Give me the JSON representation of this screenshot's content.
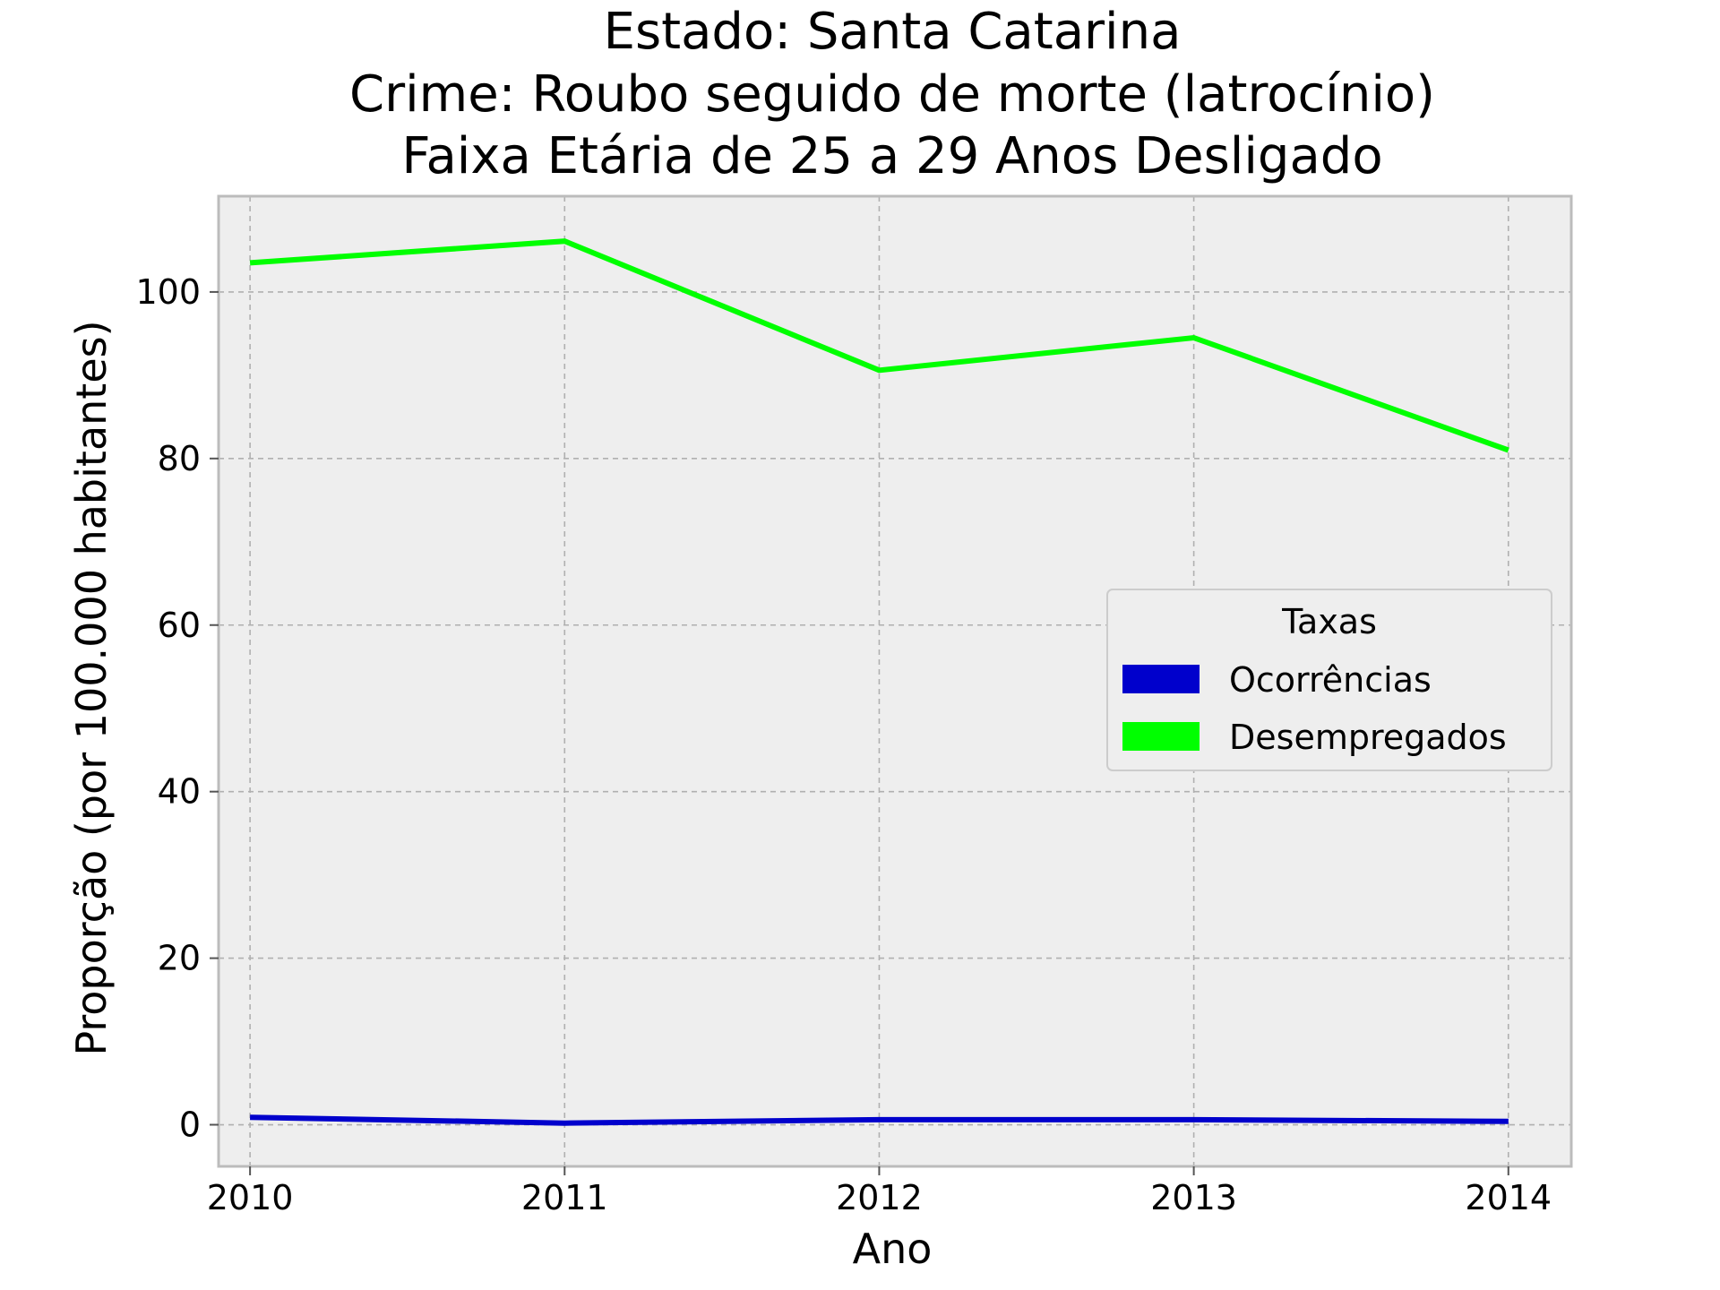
{
  "chart_data": {
    "type": "line",
    "title_lines": [
      "Estado: Santa Catarina",
      "Crime: Roubo seguido de morte (latrocínio)",
      "Faixa Etária de 25 a 29 Anos   Desligado"
    ],
    "xlabel": "Ano",
    "ylabel": "Proporção (por 100.000 habitantes)",
    "x": [
      2010,
      2011,
      2012,
      2013,
      2014
    ],
    "x_tick_labels": [
      "2010",
      "2011",
      "2012",
      "2013",
      "2014"
    ],
    "xlim": [
      2009.9,
      2014.2
    ],
    "y_ticks": [
      0,
      20,
      40,
      60,
      80,
      100
    ],
    "y_tick_labels": [
      "0",
      "20",
      "40",
      "60",
      "80",
      "100"
    ],
    "ylim": [
      -5,
      111.5
    ],
    "grid": true,
    "legend": {
      "title": "Taxas",
      "placement": "center-right"
    },
    "series": [
      {
        "name": "Ocorrências",
        "color": "#0000cc",
        "values": [
          0.9,
          0.2,
          0.6,
          0.6,
          0.4
        ]
      },
      {
        "name": "Desempregados",
        "color": "#00ff00",
        "values": [
          103.5,
          106.1,
          90.6,
          94.5,
          81.0
        ]
      }
    ],
    "colors": {
      "plot_background": "#eeeeee",
      "grid": "#b0b0b0",
      "frame": "#bcbcbc"
    }
  }
}
